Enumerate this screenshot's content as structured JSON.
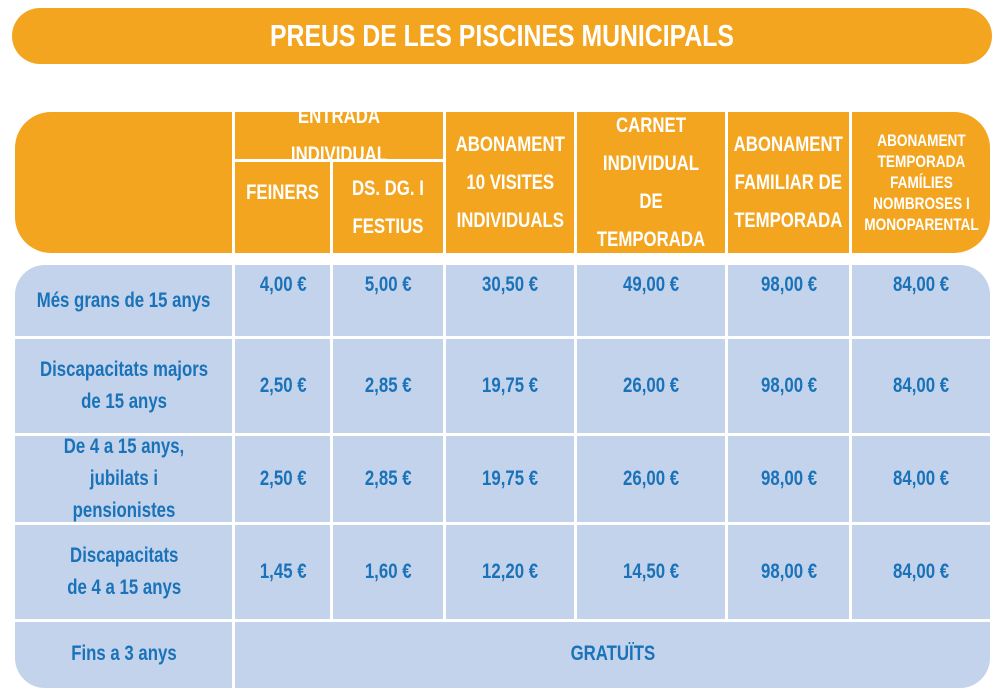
{
  "title": "PREUS DE LES PISCINES MUNICIPALS",
  "header": {
    "entrada_individual": "ENTRADA INDIVIDUAL",
    "feiners": "FEINERS",
    "festius": "DS. DG. I\nFESTIUS",
    "abonament10": "ABONAMENT\n10 VISITES\nINDIVIDUALS",
    "carnet": "CARNET\nINDIVIDUAL\nDE TEMPORADA",
    "familiar": "ABONAMENT\nFAMILIAR DE\nTEMPORADA",
    "nombroses": "ABONAMENT\nTEMPORADA\nFAMÍLIES\nNOMBROSES I\nMONOPARENTAL"
  },
  "rows": [
    {
      "label": "Més grans de 15 anys",
      "values": [
        "4,00 €",
        "5,00 €",
        "30,50 €",
        "49,00 €",
        "98,00 €",
        "84,00 €"
      ]
    },
    {
      "label": "Discapacitats majors\nde 15 anys",
      "values": [
        "2,50 €",
        "2,85 €",
        "19,75 €",
        "26,00 €",
        "98,00 €",
        "84,00 €"
      ]
    },
    {
      "label": "De 4 a 15 anys,\njubilats i pensionistes",
      "values": [
        "2,50 €",
        "2,85 €",
        "19,75 €",
        "26,00 €",
        "98,00 €",
        "84,00 €"
      ]
    },
    {
      "label": "Discapacitats\nde 4 a 15 anys",
      "values": [
        "1,45 €",
        "1,60 €",
        "12,20 €",
        "14,50 €",
        "98,00 €",
        "84,00 €"
      ]
    },
    {
      "label": "Fins a 3 anys",
      "free": "GRATUÏTS"
    }
  ],
  "colors": {
    "header": "#F4A51F",
    "body": "#C3D3EC",
    "text": "#1A72B9"
  }
}
